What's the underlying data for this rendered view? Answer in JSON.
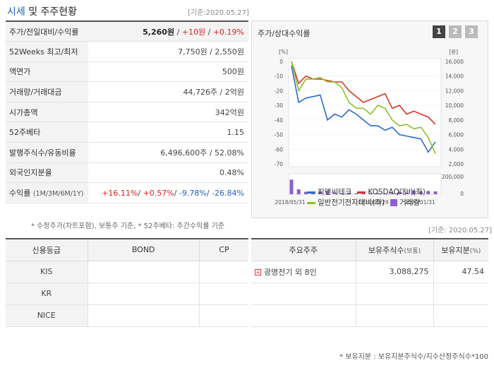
{
  "header": {
    "title_part1": "시세",
    "title_part2": " 및 주주현황",
    "date": "[기준:2020.05.27]"
  },
  "price_table": {
    "rows": [
      {
        "label": "주가/전일대비/수익률"
      },
      {
        "label": "52Weeks 최고/최저",
        "value": "7,750원 / 2,550원"
      },
      {
        "label": "액면가",
        "value": "500원"
      },
      {
        "label": "거래량/거래대금",
        "value": "44,726주 / 2억원"
      },
      {
        "label": "시가총액",
        "value": "342억원"
      },
      {
        "label": "52주베타",
        "value": "1.15"
      },
      {
        "label": "발행주식수/유동비율",
        "value": "6,496,600주 / 52.08%"
      },
      {
        "label": "외국인지분율",
        "value": "0.48%"
      },
      {
        "label": "수익률",
        "label_small": "(1M/3M/6M/1Y)"
      }
    ],
    "price": "5,260원",
    "sep1": " / ",
    "change": "+10원",
    "sep2": " / ",
    "rate": "+0.19%",
    "returns": [
      "+16.11%",
      "+0.57%",
      "-9.78%",
      "-26.84%"
    ],
    "slash": "/ "
  },
  "note1": "* 수정주가(차트포함), 보통주 기준, * 52주베타: 주간수익률 기준",
  "chart": {
    "title": "주가/상대수익률",
    "tabs": [
      "1",
      "2",
      "3"
    ],
    "left_unit": "[%]",
    "right_unit": "[원]",
    "legend": [
      "피앤씨테크",
      "KOSDAQ대비(좌)",
      "일반전기전자대비(좌)",
      "거래량"
    ],
    "colors": {
      "stock": "#2a6cc8",
      "kosdaq": "#d0392a",
      "sector": "#8cbf2a",
      "volume": "#8b62c9"
    }
  },
  "chart_data": {
    "type": "line",
    "x_ticks": [
      "2018/05/31",
      "2019/03/29",
      "2020/01/31"
    ],
    "left_axis": {
      "ticks": [
        "0",
        "-10",
        "-20",
        "-30",
        "-40",
        "-50",
        "-60",
        "-70"
      ],
      "ylim": [
        -70,
        0
      ]
    },
    "right_axis": {
      "ticks": [
        "16,000",
        "14,000",
        "12,000",
        "10,000",
        "8,000",
        "6,000",
        "4,000",
        "2,000"
      ],
      "ylim": [
        2000,
        16000
      ]
    },
    "volume_axis": {
      "ticks": [
        "200,000",
        "0"
      ]
    },
    "series": [
      {
        "name": "피앤씨테크",
        "axis": "left",
        "values": [
          -3,
          -28,
          -25,
          -24,
          -23,
          -40,
          -36,
          -38,
          -33,
          -36,
          -40,
          -44,
          -44,
          -47,
          -45,
          -50,
          -51,
          -52,
          -53,
          -62,
          -55
        ]
      },
      {
        "name": "KOSDAQ대비(좌)",
        "axis": "left",
        "values": [
          0,
          -15,
          -10,
          -12,
          -12,
          -13,
          -14,
          -14,
          -20,
          -24,
          -28,
          -26,
          -24,
          -22,
          -32,
          -30,
          -36,
          -34,
          -36,
          -38,
          -43
        ]
      },
      {
        "name": "일반전기전자대비(좌)",
        "axis": "left",
        "values": [
          0,
          -20,
          -12,
          -12,
          -11,
          -14,
          -14,
          -18,
          -28,
          -32,
          -32,
          -36,
          -30,
          -32,
          -40,
          -44,
          -43,
          -46,
          -45,
          -52,
          -63
        ]
      }
    ],
    "volume": [
      180000,
      60000,
      30000,
      25000,
      35000,
      40000,
      15000,
      10000,
      20000,
      12000,
      8000,
      10000,
      12000,
      10000,
      15000,
      30000,
      20000,
      45000,
      30000,
      40000,
      35000
    ]
  },
  "credit_table": {
    "headers": [
      "신용등급",
      "BOND",
      "CP"
    ],
    "rows": [
      "KIS",
      "KR",
      "NICE"
    ]
  },
  "holders_table": {
    "date": "[기준: 2020.05.27]",
    "headers": [
      "주요주주",
      "보유주식수",
      "(보통)",
      "보유지분",
      "(%)"
    ],
    "row": {
      "name": "광명전기 외 8인",
      "shares": "3,088,275",
      "stake": "47.54"
    }
  },
  "note2": "* 보유지분 : 보유지분주식수/지수산정주식수*100"
}
